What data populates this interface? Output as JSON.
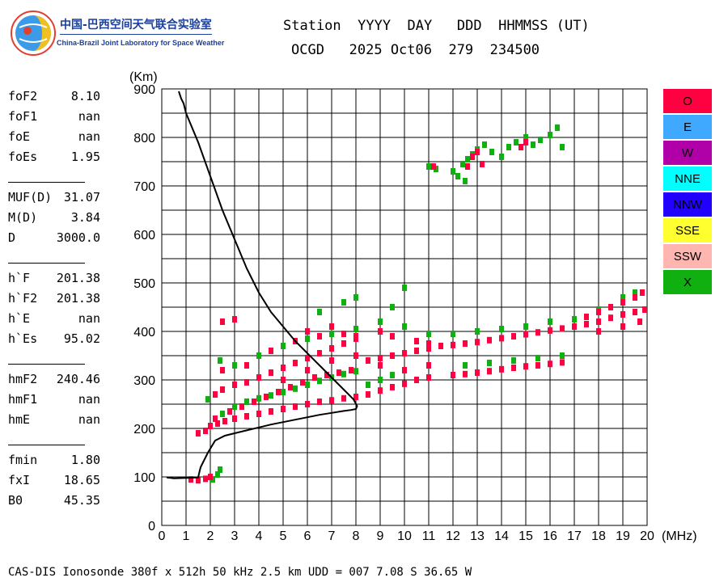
{
  "logo": {
    "icon": "globe-logo-icon",
    "title_cn": "中国-巴西空间天气联合实验室",
    "title_en": "China-Brazil Joint Laboratory for Space Weather"
  },
  "header": {
    "line1": "Station  YYYY  DAY   DDD  HHMMSS (UT)",
    "line2": "OCGD   2025 Oct06  279  234500"
  },
  "params": [
    {
      "label": "foF2",
      "value": "8.10"
    },
    {
      "label": "foF1",
      "value": "nan"
    },
    {
      "label": "foE",
      "value": "nan"
    },
    {
      "label": "foEs",
      "value": "1.95"
    },
    {
      "label": "MUF(D)",
      "value": "31.07"
    },
    {
      "label": "M(D)",
      "value": "3.84"
    },
    {
      "label": "D",
      "value": "3000.0"
    },
    {
      "label": "h`F",
      "value": "201.38"
    },
    {
      "label": "h`F2",
      "value": "201.38"
    },
    {
      "label": "h`E",
      "value": "nan"
    },
    {
      "label": "h`Es",
      "value": "95.02"
    },
    {
      "label": "hmF2",
      "value": "240.46"
    },
    {
      "label": "hmF1",
      "value": "nan"
    },
    {
      "label": "hmE",
      "value": "nan"
    },
    {
      "label": "fmin",
      "value": "1.80"
    },
    {
      "label": "fxI",
      "value": "18.65"
    },
    {
      "label": "B0",
      "value": "45.35"
    }
  ],
  "legend": [
    {
      "label": "O",
      "color": "#ff0040"
    },
    {
      "label": "E",
      "color": "#3fa9ff"
    },
    {
      "label": "W",
      "color": "#b000a8"
    },
    {
      "label": "NNE",
      "color": "#00ffff"
    },
    {
      "label": "NNW",
      "color": "#2200ff"
    },
    {
      "label": "SSE",
      "color": "#ffff30"
    },
    {
      "label": "SSW",
      "color": "#ffb6b0"
    },
    {
      "label": "X",
      "color": "#10b010"
    }
  ],
  "footer": "CAS-DIS Ionosonde 380f x 512h 50 kHz 2.5 km UDD = 007 7.08 S 36.65 W",
  "chart_data": {
    "type": "scatter",
    "xlabel": "(MHz)",
    "ylabel": "(Km)",
    "xlim": [
      0,
      20
    ],
    "ylim": [
      0,
      900
    ],
    "xticks": [
      "0",
      "1",
      "2",
      "3",
      "4",
      "5",
      "6",
      "7",
      "8",
      "9",
      "10",
      "11",
      "12",
      "13",
      "14",
      "15",
      "16",
      "17",
      "18",
      "19",
      "20"
    ],
    "yticks": [
      "0",
      "100",
      "200",
      "300",
      "400",
      "500",
      "600",
      "700",
      "800",
      "900"
    ],
    "grid": true,
    "legend_placement": "right",
    "series": [
      {
        "name": "O",
        "color": "#ff0040",
        "points": [
          [
            1.2,
            95
          ],
          [
            1.5,
            93
          ],
          [
            1.8,
            96
          ],
          [
            2.0,
            100
          ],
          [
            1.5,
            190
          ],
          [
            1.8,
            195
          ],
          [
            2.0,
            205
          ],
          [
            2.3,
            210
          ],
          [
            2.6,
            215
          ],
          [
            3.0,
            220
          ],
          [
            3.5,
            225
          ],
          [
            4.0,
            230
          ],
          [
            4.5,
            235
          ],
          [
            5.0,
            240
          ],
          [
            5.5,
            245
          ],
          [
            6.0,
            250
          ],
          [
            6.5,
            255
          ],
          [
            7.0,
            258
          ],
          [
            7.5,
            262
          ],
          [
            8.0,
            265
          ],
          [
            8.5,
            270
          ],
          [
            9.0,
            278
          ],
          [
            9.5,
            285
          ],
          [
            10.0,
            292
          ],
          [
            10.5,
            300
          ],
          [
            11.0,
            305
          ],
          [
            2.2,
            270
          ],
          [
            2.5,
            280
          ],
          [
            3.0,
            290
          ],
          [
            3.5,
            295
          ],
          [
            4.0,
            305
          ],
          [
            4.5,
            315
          ],
          [
            5.0,
            325
          ],
          [
            5.5,
            335
          ],
          [
            6.0,
            345
          ],
          [
            6.5,
            355
          ],
          [
            7.0,
            365
          ],
          [
            7.5,
            375
          ],
          [
            8.0,
            385
          ],
          [
            8.5,
            340
          ],
          [
            9.0,
            345
          ],
          [
            9.5,
            350
          ],
          [
            10.0,
            355
          ],
          [
            10.5,
            360
          ],
          [
            11.0,
            365
          ],
          [
            11.5,
            370
          ],
          [
            12.0,
            372
          ],
          [
            12.5,
            375
          ],
          [
            13.0,
            378
          ],
          [
            13.5,
            382
          ],
          [
            14.0,
            386
          ],
          [
            14.5,
            390
          ],
          [
            15.0,
            394
          ],
          [
            15.5,
            398
          ],
          [
            16.0,
            402
          ],
          [
            16.5,
            406
          ],
          [
            17.0,
            410
          ],
          [
            17.5,
            415
          ],
          [
            18.0,
            420
          ],
          [
            18.5,
            428
          ],
          [
            19.0,
            435
          ],
          [
            19.5,
            440
          ],
          [
            19.9,
            445
          ],
          [
            12.0,
            310
          ],
          [
            12.5,
            312
          ],
          [
            13.0,
            315
          ],
          [
            13.5,
            318
          ],
          [
            14.0,
            322
          ],
          [
            14.5,
            325
          ],
          [
            15.0,
            328
          ],
          [
            15.5,
            330
          ],
          [
            16.0,
            333
          ],
          [
            16.5,
            336
          ],
          [
            2.5,
            420
          ],
          [
            3.0,
            425
          ],
          [
            6.0,
            400
          ],
          [
            7.0,
            410
          ],
          [
            7.5,
            395
          ],
          [
            8.0,
            390
          ],
          [
            9.0,
            400
          ],
          [
            9.5,
            390
          ],
          [
            10.5,
            380
          ],
          [
            11.0,
            375
          ],
          [
            2.2,
            220
          ],
          [
            2.8,
            235
          ],
          [
            3.3,
            245
          ],
          [
            3.8,
            255
          ],
          [
            4.3,
            265
          ],
          [
            4.8,
            275
          ],
          [
            5.3,
            285
          ],
          [
            5.8,
            295
          ],
          [
            6.3,
            305
          ],
          [
            6.8,
            310
          ],
          [
            7.3,
            315
          ],
          [
            7.8,
            320
          ],
          [
            2.5,
            320
          ],
          [
            3.5,
            330
          ],
          [
            4.5,
            360
          ],
          [
            5.5,
            380
          ],
          [
            6.5,
            390
          ],
          [
            5.0,
            300
          ],
          [
            6.0,
            320
          ],
          [
            7.0,
            340
          ],
          [
            8.0,
            350
          ],
          [
            9.0,
            330
          ],
          [
            10.0,
            320
          ],
          [
            11.0,
            330
          ],
          [
            17.5,
            430
          ],
          [
            18.0,
            440
          ],
          [
            18.5,
            450
          ],
          [
            19.0,
            460
          ],
          [
            19.5,
            470
          ],
          [
            19.8,
            480
          ],
          [
            18.0,
            400
          ],
          [
            19.0,
            410
          ],
          [
            19.7,
            420
          ],
          [
            12.8,
            760
          ],
          [
            13.0,
            770
          ],
          [
            12.6,
            740
          ],
          [
            13.2,
            745
          ],
          [
            11.2,
            740
          ],
          [
            14.8,
            780
          ],
          [
            15.0,
            790
          ]
        ]
      },
      {
        "name": "X",
        "color": "#10b010",
        "points": [
          [
            2.0,
            100
          ],
          [
            2.3,
            105
          ],
          [
            2.4,
            115
          ],
          [
            2.1,
            95
          ],
          [
            2.5,
            230
          ],
          [
            3.0,
            245
          ],
          [
            3.5,
            255
          ],
          [
            4.0,
            262
          ],
          [
            4.5,
            268
          ],
          [
            5.0,
            275
          ],
          [
            5.5,
            282
          ],
          [
            6.0,
            290
          ],
          [
            6.5,
            298
          ],
          [
            7.0,
            305
          ],
          [
            7.5,
            312
          ],
          [
            8.0,
            318
          ],
          [
            8.5,
            290
          ],
          [
            9.0,
            300
          ],
          [
            9.5,
            310
          ],
          [
            10.0,
            320
          ],
          [
            3.0,
            330
          ],
          [
            4.0,
            350
          ],
          [
            5.0,
            370
          ],
          [
            6.0,
            385
          ],
          [
            7.0,
            395
          ],
          [
            8.0,
            405
          ],
          [
            9.0,
            420
          ],
          [
            10.0,
            410
          ],
          [
            11.0,
            395
          ],
          [
            12.0,
            395
          ],
          [
            13.0,
            400
          ],
          [
            14.0,
            405
          ],
          [
            15.0,
            410
          ],
          [
            16.0,
            420
          ],
          [
            17.0,
            425
          ],
          [
            18.0,
            445
          ],
          [
            19.0,
            470
          ],
          [
            19.5,
            480
          ],
          [
            12.5,
            330
          ],
          [
            13.5,
            335
          ],
          [
            14.5,
            340
          ],
          [
            15.5,
            345
          ],
          [
            16.5,
            350
          ],
          [
            11.0,
            740
          ],
          [
            11.3,
            735
          ],
          [
            12.0,
            730
          ],
          [
            12.2,
            720
          ],
          [
            12.4,
            745
          ],
          [
            12.6,
            755
          ],
          [
            12.8,
            765
          ],
          [
            13.0,
            775
          ],
          [
            13.3,
            785
          ],
          [
            13.6,
            770
          ],
          [
            14.0,
            760
          ],
          [
            14.3,
            780
          ],
          [
            14.6,
            790
          ],
          [
            15.0,
            800
          ],
          [
            15.3,
            785
          ],
          [
            15.6,
            795
          ],
          [
            16.0,
            805
          ],
          [
            16.3,
            820
          ],
          [
            16.5,
            780
          ],
          [
            12.5,
            710
          ],
          [
            7.5,
            460
          ],
          [
            8.0,
            470
          ],
          [
            6.5,
            440
          ],
          [
            9.5,
            450
          ],
          [
            10.0,
            490
          ],
          [
            2.4,
            340
          ],
          [
            1.9,
            260
          ]
        ]
      }
    ],
    "profile_curve": {
      "name": "",
      "color": "#000000",
      "points": [
        [
          0.2,
          99
        ],
        [
          0.5,
          97
        ],
        [
          1.0,
          98
        ],
        [
          1.5,
          99
        ],
        [
          1.55,
          110
        ],
        [
          1.6,
          120
        ],
        [
          1.9,
          150
        ],
        [
          2.2,
          175
        ],
        [
          2.6,
          185
        ],
        [
          3.0,
          190
        ],
        [
          3.5,
          196
        ],
        [
          4.0,
          202
        ],
        [
          4.5,
          208
        ],
        [
          5.0,
          213
        ],
        [
          5.5,
          218
        ],
        [
          6.0,
          223
        ],
        [
          6.5,
          228
        ],
        [
          7.0,
          232
        ],
        [
          7.5,
          236
        ],
        [
          7.8,
          238
        ],
        [
          8.0,
          240
        ],
        [
          8.05,
          246
        ],
        [
          7.9,
          260
        ],
        [
          7.5,
          280
        ],
        [
          7.0,
          305
        ],
        [
          6.5,
          330
        ],
        [
          6.0,
          355
        ],
        [
          5.5,
          380
        ],
        [
          5.0,
          410
        ],
        [
          4.5,
          440
        ],
        [
          4.0,
          480
        ],
        [
          3.5,
          530
        ],
        [
          3.0,
          590
        ],
        [
          2.5,
          650
        ],
        [
          2.0,
          720
        ],
        [
          1.5,
          790
        ],
        [
          1.0,
          850
        ],
        [
          0.9,
          870
        ],
        [
          0.8,
          880
        ],
        [
          0.7,
          895
        ]
      ]
    }
  }
}
